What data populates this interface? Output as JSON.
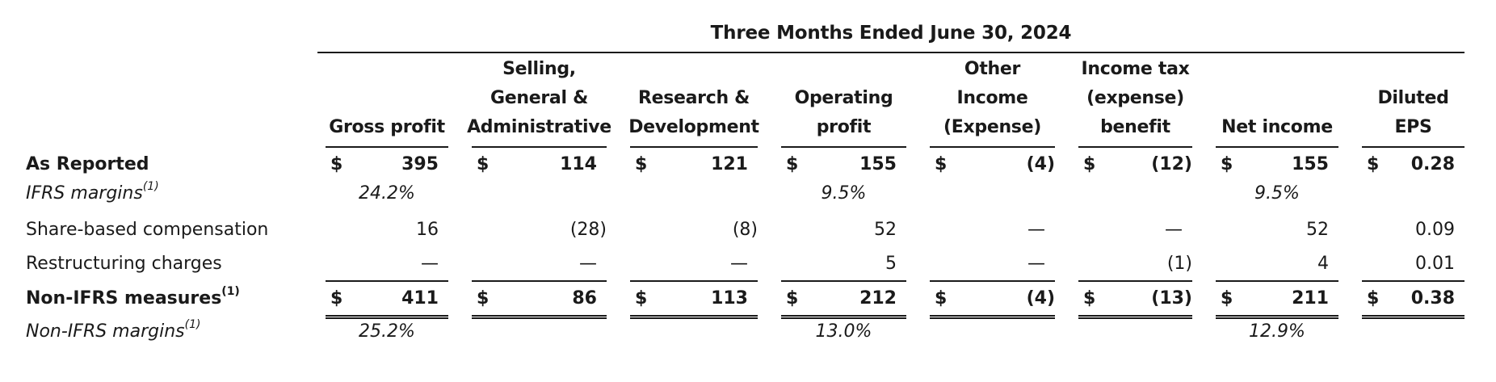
{
  "table": {
    "period_title": "Three Months Ended June 30, 2024",
    "columns": [
      {
        "key": "gross_profit",
        "lines": [
          "Gross profit"
        ]
      },
      {
        "key": "sga",
        "lines": [
          "Selling,",
          "General &",
          "Administrative"
        ]
      },
      {
        "key": "rd",
        "lines": [
          "Research &",
          "Development"
        ]
      },
      {
        "key": "operating_profit",
        "lines": [
          "Operating",
          "profit"
        ]
      },
      {
        "key": "other_income",
        "lines": [
          "Other",
          "Income",
          "(Expense)"
        ]
      },
      {
        "key": "income_tax",
        "lines": [
          "Income tax",
          "(expense)",
          "benefit"
        ]
      },
      {
        "key": "net_income",
        "lines": [
          "Net income"
        ]
      },
      {
        "key": "diluted_eps",
        "lines": [
          "Diluted",
          "EPS"
        ]
      }
    ],
    "rows": [
      {
        "key": "as_reported",
        "label": "As Reported",
        "superscript": "",
        "style": "bold",
        "currency": "$",
        "values": [
          "395",
          "114",
          "121",
          "155",
          "(4)",
          "(12)",
          "155",
          "0.28"
        ]
      },
      {
        "key": "ifrs_margins",
        "label": "IFRS margins",
        "superscript": "(1)",
        "style": "italic",
        "currency": "",
        "values": [
          "24.2%",
          "",
          "",
          "9.5%",
          "",
          "",
          "9.5%",
          ""
        ]
      },
      {
        "key": "sbc",
        "label": "Share-based compensation",
        "superscript": "",
        "style": "normal",
        "currency": "",
        "values": [
          "16",
          "(28)",
          "(8)",
          "52",
          "—",
          "—",
          "52",
          "0.09"
        ]
      },
      {
        "key": "restructuring",
        "label": "Restructuring charges",
        "superscript": "",
        "style": "normal",
        "currency": "",
        "values": [
          "—",
          "—",
          "—",
          "5",
          "—",
          "(1)",
          "4",
          "0.01"
        ]
      },
      {
        "key": "non_ifrs",
        "label": "Non-IFRS measures",
        "superscript": "(1)",
        "style": "bold",
        "currency": "$",
        "values": [
          "411",
          "86",
          "113",
          "212",
          "(4)",
          "(13)",
          "211",
          "0.38"
        ]
      },
      {
        "key": "non_ifrs_margins",
        "label": "Non-IFRS margins",
        "superscript": "(1)",
        "style": "italic",
        "currency": "",
        "values": [
          "25.2%",
          "",
          "",
          "13.0%",
          "",
          "",
          "12.9%",
          ""
        ]
      }
    ]
  }
}
